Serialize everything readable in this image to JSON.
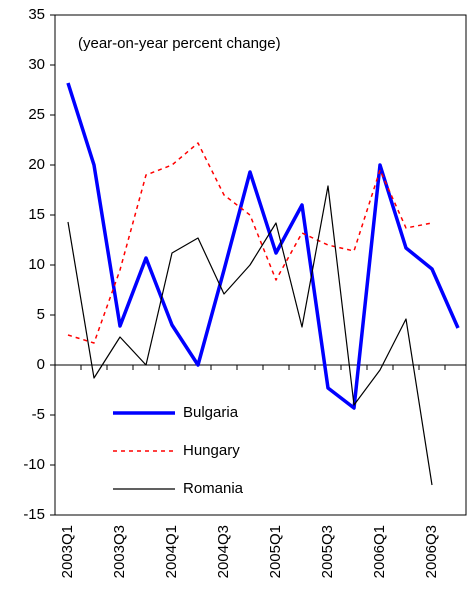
{
  "chart_data": {
    "type": "line",
    "annotation": "(year-on-year percent change)",
    "categories": [
      "2003Q1",
      null,
      "2003Q3",
      null,
      "2004Q1",
      null,
      "2004Q3",
      null,
      "2005Q1",
      null,
      "2005Q3",
      null,
      "2006Q1",
      null,
      "2006Q3",
      null
    ],
    "series": [
      {
        "name": "Bulgaria",
        "color": "#0000ff",
        "dash": "solid",
        "width": 3.5,
        "values": [
          28.2,
          20,
          3.9,
          10.7,
          4,
          0,
          9.5,
          19.3,
          11.2,
          16,
          -2.3,
          -4.3,
          20,
          11.7,
          9.6,
          3.7
        ]
      },
      {
        "name": "Hungary",
        "color": "#ff0000",
        "dash": "dotted",
        "width": 1.5,
        "values": [
          3,
          2.2,
          9.5,
          19,
          20,
          22.2,
          17,
          15,
          8.5,
          13.2,
          12,
          11.4,
          19.5,
          13.7,
          14.2,
          null
        ]
      },
      {
        "name": "Romania",
        "color": "#000000",
        "dash": "solid",
        "width": 1.2,
        "values": [
          14.3,
          -1.3,
          2.8,
          0,
          11.2,
          12.7,
          7.1,
          10,
          14.2,
          3.8,
          17.9,
          -4,
          -0.5,
          4.6,
          -12,
          null
        ]
      }
    ],
    "ylim": [
      -15,
      35
    ],
    "yticks": [
      -15,
      -10,
      -5,
      0,
      5,
      10,
      15,
      20,
      25,
      30,
      35
    ],
    "grid": false,
    "legend": "lower-left"
  }
}
